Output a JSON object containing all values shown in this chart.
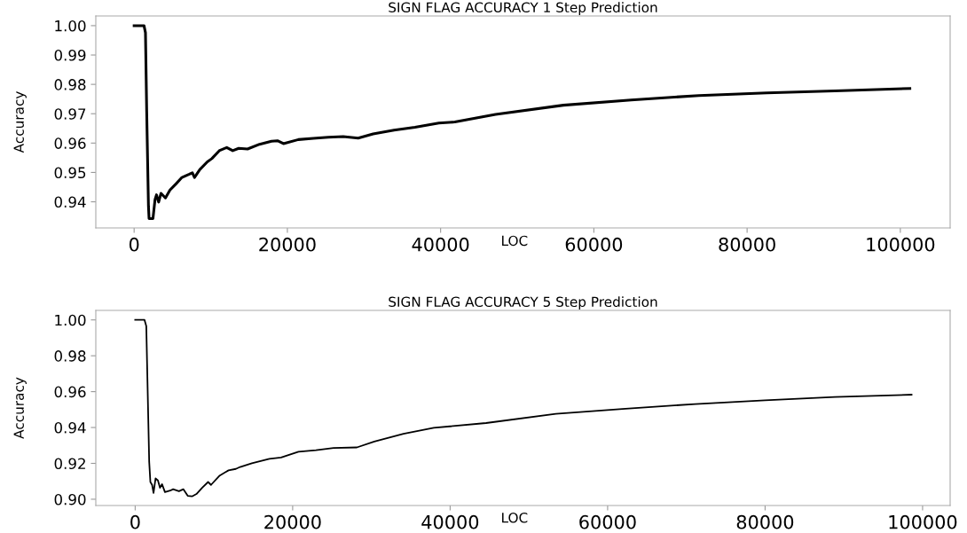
{
  "chart_data": [
    {
      "type": "line",
      "title": "SIGN FLAG ACCURACY 1 Step Prediction",
      "xlabel": "LOC",
      "ylabel": "Accuracy",
      "xlim": [
        -5000,
        106500
      ],
      "ylim": [
        0.9311,
        1.0033
      ],
      "xticks": [
        0,
        20000,
        40000,
        60000,
        80000,
        100000
      ],
      "yticks": [
        {
          "value": 0.94,
          "label": "0.94"
        },
        {
          "value": 0.95,
          "label": "0.95"
        },
        {
          "value": 0.96,
          "label": "0.96"
        },
        {
          "value": 0.97,
          "label": "0.97"
        },
        {
          "value": 0.98,
          "label": "0.98"
        },
        {
          "value": 0.99,
          "label": "0.99"
        },
        {
          "value": 1.0,
          "label": "1.00"
        }
      ],
      "marker": "none",
      "line_style": "solid",
      "series": [
        {
          "color": "#000000",
          "x": [
            0,
            1290,
            1480,
            1640,
            1870,
            1950,
            2460,
            2730,
            2920,
            3200,
            3510,
            4090,
            4680,
            5460,
            6240,
            7210,
            7600,
            7880,
            8580,
            9550,
            10140,
            11110,
            12090,
            12870,
            13650,
            14810,
            16370,
            17930,
            18710,
            19490,
            21440,
            23390,
            25340,
            27290,
            29240,
            31190,
            33920,
            36650,
            39770,
            41860,
            47170,
            56020,
            64870,
            73720,
            82570,
            91420,
            101240
          ],
          "values": [
            1.0,
            1.0,
            0.9976,
            0.9708,
            0.9386,
            0.9343,
            0.9343,
            0.9408,
            0.9424,
            0.9399,
            0.9429,
            0.9413,
            0.944,
            0.9461,
            0.9483,
            0.9494,
            0.9499,
            0.9483,
            0.951,
            0.9536,
            0.9547,
            0.9574,
            0.9585,
            0.9574,
            0.9582,
            0.958,
            0.9596,
            0.9606,
            0.9608,
            0.9598,
            0.9612,
            0.9616,
            0.962,
            0.9622,
            0.9617,
            0.9631,
            0.9644,
            0.9654,
            0.9668,
            0.9672,
            0.9698,
            0.9729,
            0.9747,
            0.9762,
            0.9771,
            0.9778,
            0.9786
          ]
        }
      ]
    },
    {
      "type": "line",
      "title": "SIGN FLAG ACCURACY 5 Step Prediction",
      "xlabel": "LOC",
      "ylabel": "Accuracy",
      "xlim": [
        -5000,
        103500
      ],
      "ylim": [
        0.8965,
        1.0053
      ],
      "xticks": [
        0,
        20000,
        40000,
        60000,
        80000,
        100000
      ],
      "yticks": [
        {
          "value": 0.9,
          "label": "0.90"
        },
        {
          "value": 0.92,
          "label": "0.92"
        },
        {
          "value": 0.94,
          "label": "0.94"
        },
        {
          "value": 0.96,
          "label": "0.96"
        },
        {
          "value": 0.98,
          "label": "0.98"
        },
        {
          "value": 1.0,
          "label": "1.00"
        }
      ],
      "marker": "none",
      "line_style": "solid",
      "series": [
        {
          "color": "#000000",
          "x": [
            0,
            1185,
            1410,
            1560,
            1780,
            1930,
            2150,
            2330,
            2590,
            2890,
            3150,
            3410,
            3780,
            4440,
            4820,
            5560,
            6110,
            6670,
            7220,
            7780,
            8520,
            9260,
            9630,
            10740,
            11850,
            12780,
            13330,
            14820,
            17040,
            18520,
            20740,
            22960,
            25190,
            28150,
            30370,
            34080,
            37920,
            44560,
            53420,
            62280,
            71140,
            80000,
            88860,
            98600
          ],
          "values": [
            1.0,
            1.0,
            0.9965,
            0.9659,
            0.9209,
            0.9096,
            0.908,
            0.9035,
            0.9116,
            0.9105,
            0.9064,
            0.9084,
            0.904,
            0.9048,
            0.9056,
            0.9045,
            0.9056,
            0.9019,
            0.9016,
            0.9029,
            0.9064,
            0.9096,
            0.908,
            0.9132,
            0.9161,
            0.9169,
            0.918,
            0.9201,
            0.9225,
            0.9233,
            0.9265,
            0.9273,
            0.9286,
            0.9289,
            0.9322,
            0.9365,
            0.9398,
            0.9425,
            0.9476,
            0.9505,
            0.9531,
            0.9552,
            0.957,
            0.9583
          ]
        }
      ]
    }
  ]
}
